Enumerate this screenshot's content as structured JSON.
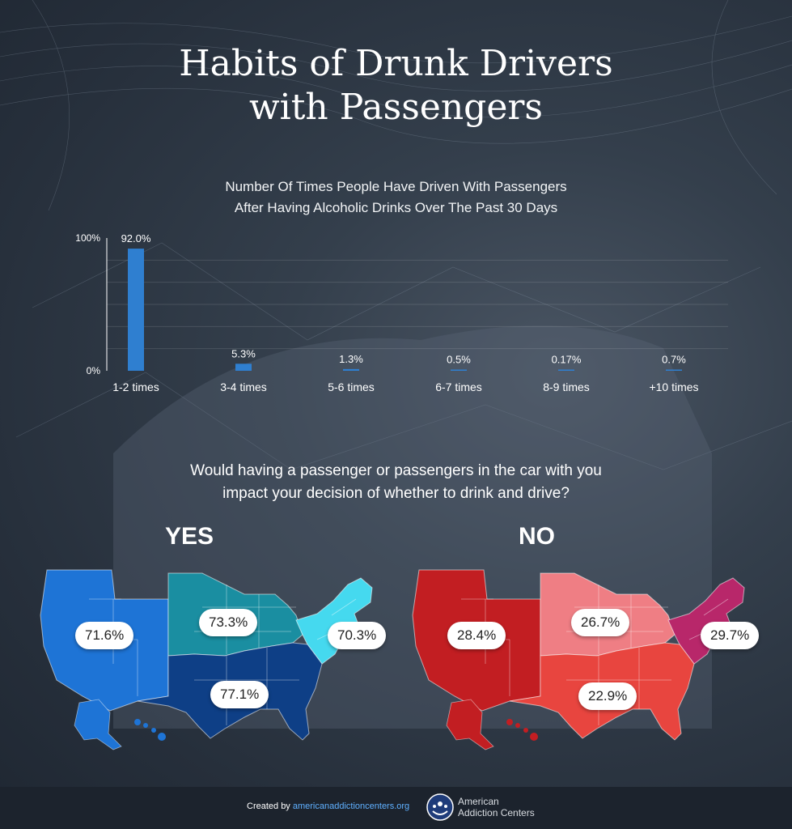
{
  "title_line1": "Habits of Drunk Drivers",
  "title_line2": "with Passengers",
  "subtitle_line1": "Number Of Times People Have Driven With Passengers",
  "subtitle_line2": "After Having Alcoholic Drinks Over The Past 30 Days",
  "chart_data": {
    "type": "bar",
    "title": "Number Of Times People Have Driven With Passengers After Having Alcoholic Drinks Over The Past 30 Days",
    "categories": [
      "1-2 times",
      "3-4 times",
      "5-6 times",
      "6-7 times",
      "8-9 times",
      "+10 times"
    ],
    "values": [
      92.0,
      5.3,
      1.3,
      0.5,
      0.17,
      0.7
    ],
    "data_labels": [
      "92.0%",
      "5.3%",
      "1.3%",
      "0.5%",
      "0.17%",
      "0.7%"
    ],
    "y_ticks": [
      "100%",
      "0%"
    ],
    "ylim": [
      0,
      100
    ],
    "xlabel": "",
    "ylabel": "",
    "grid": true,
    "bar_color": "#2f7fd0"
  },
  "question_line1": "Would having a passenger or passengers in the car with you",
  "question_line2": "impact your decision of whether to drink and drive?",
  "maps": {
    "yes": {
      "heading": "YES",
      "labels": {
        "west": "71.6%",
        "midwest": "73.3%",
        "northeast": "70.3%",
        "south": "77.1%"
      },
      "colors": {
        "west": "#1e74d6",
        "midwest": "#1a8ea1",
        "northeast": "#45d9ef",
        "south": "#0e3f86"
      }
    },
    "no": {
      "heading": "NO",
      "labels": {
        "west": "28.4%",
        "midwest": "26.7%",
        "northeast": "29.7%",
        "south": "22.9%"
      },
      "colors": {
        "west": "#c21e22",
        "midwest": "#ef7e84",
        "northeast": "#b8276a",
        "south": "#e8453f"
      }
    }
  },
  "footer": {
    "created_by": "Created by ",
    "site": "americanaddictioncenters.org",
    "org_line1": "American",
    "org_line2": "Addiction Centers"
  }
}
